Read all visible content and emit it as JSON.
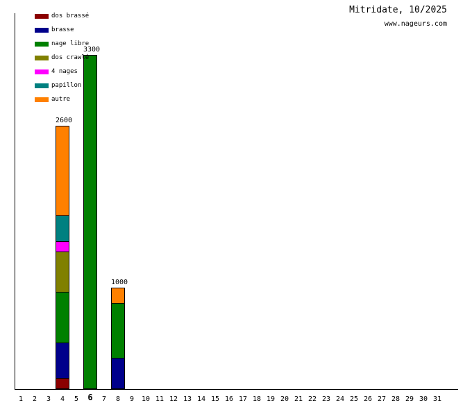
{
  "header": {
    "title": "Mitridate, 10/2025",
    "site": "www.nageurs.com"
  },
  "chart_data": {
    "type": "bar",
    "stacked": true,
    "unit": "m",
    "title": "Mitridate, 10/2025",
    "subtitle": "www.nageurs.com",
    "xlabel": "",
    "ylabel": "",
    "grid": false,
    "legend_position": "top-left",
    "axis_color": "#000000",
    "background": "#ffffff",
    "categories": [
      1,
      2,
      3,
      4,
      5,
      6,
      7,
      8,
      9,
      10,
      11,
      12,
      13,
      14,
      15,
      16,
      17,
      18,
      19,
      20,
      21,
      22,
      23,
      24,
      25,
      26,
      27,
      28,
      29,
      30,
      31
    ],
    "highlighted_category": 6,
    "segment_order": "bottom-to-top",
    "legend": [
      {
        "label": "dos brassé",
        "color": "#8b0000"
      },
      {
        "label": "brasse",
        "color": "#00008b"
      },
      {
        "label": "nage libre",
        "color": "#008000"
      },
      {
        "label": "dos crawlé",
        "color": "#808000"
      },
      {
        "label": "4 nages",
        "color": "#ff00ff"
      },
      {
        "label": "papillon",
        "color": "#008080"
      },
      {
        "label": "autre",
        "color": "#ff8000"
      }
    ],
    "bars": [
      {
        "category": 4,
        "total": 2600,
        "segments": [
          {
            "name": "dos brassé",
            "value": 100
          },
          {
            "name": "brasse",
            "value": 350
          },
          {
            "name": "nage libre",
            "value": 500
          },
          {
            "name": "dos crawlé",
            "value": 400
          },
          {
            "name": "4 nages",
            "value": 100
          },
          {
            "name": "papillon",
            "value": 250
          },
          {
            "name": "autre",
            "value": 900
          }
        ]
      },
      {
        "category": 6,
        "total": 3300,
        "segments": [
          {
            "name": "nage libre",
            "value": 3300
          }
        ]
      },
      {
        "category": 8,
        "total": 1000,
        "segments": [
          {
            "name": "brasse",
            "value": 300
          },
          {
            "name": "nage libre",
            "value": 550
          },
          {
            "name": "autre",
            "value": 150
          }
        ]
      }
    ]
  }
}
